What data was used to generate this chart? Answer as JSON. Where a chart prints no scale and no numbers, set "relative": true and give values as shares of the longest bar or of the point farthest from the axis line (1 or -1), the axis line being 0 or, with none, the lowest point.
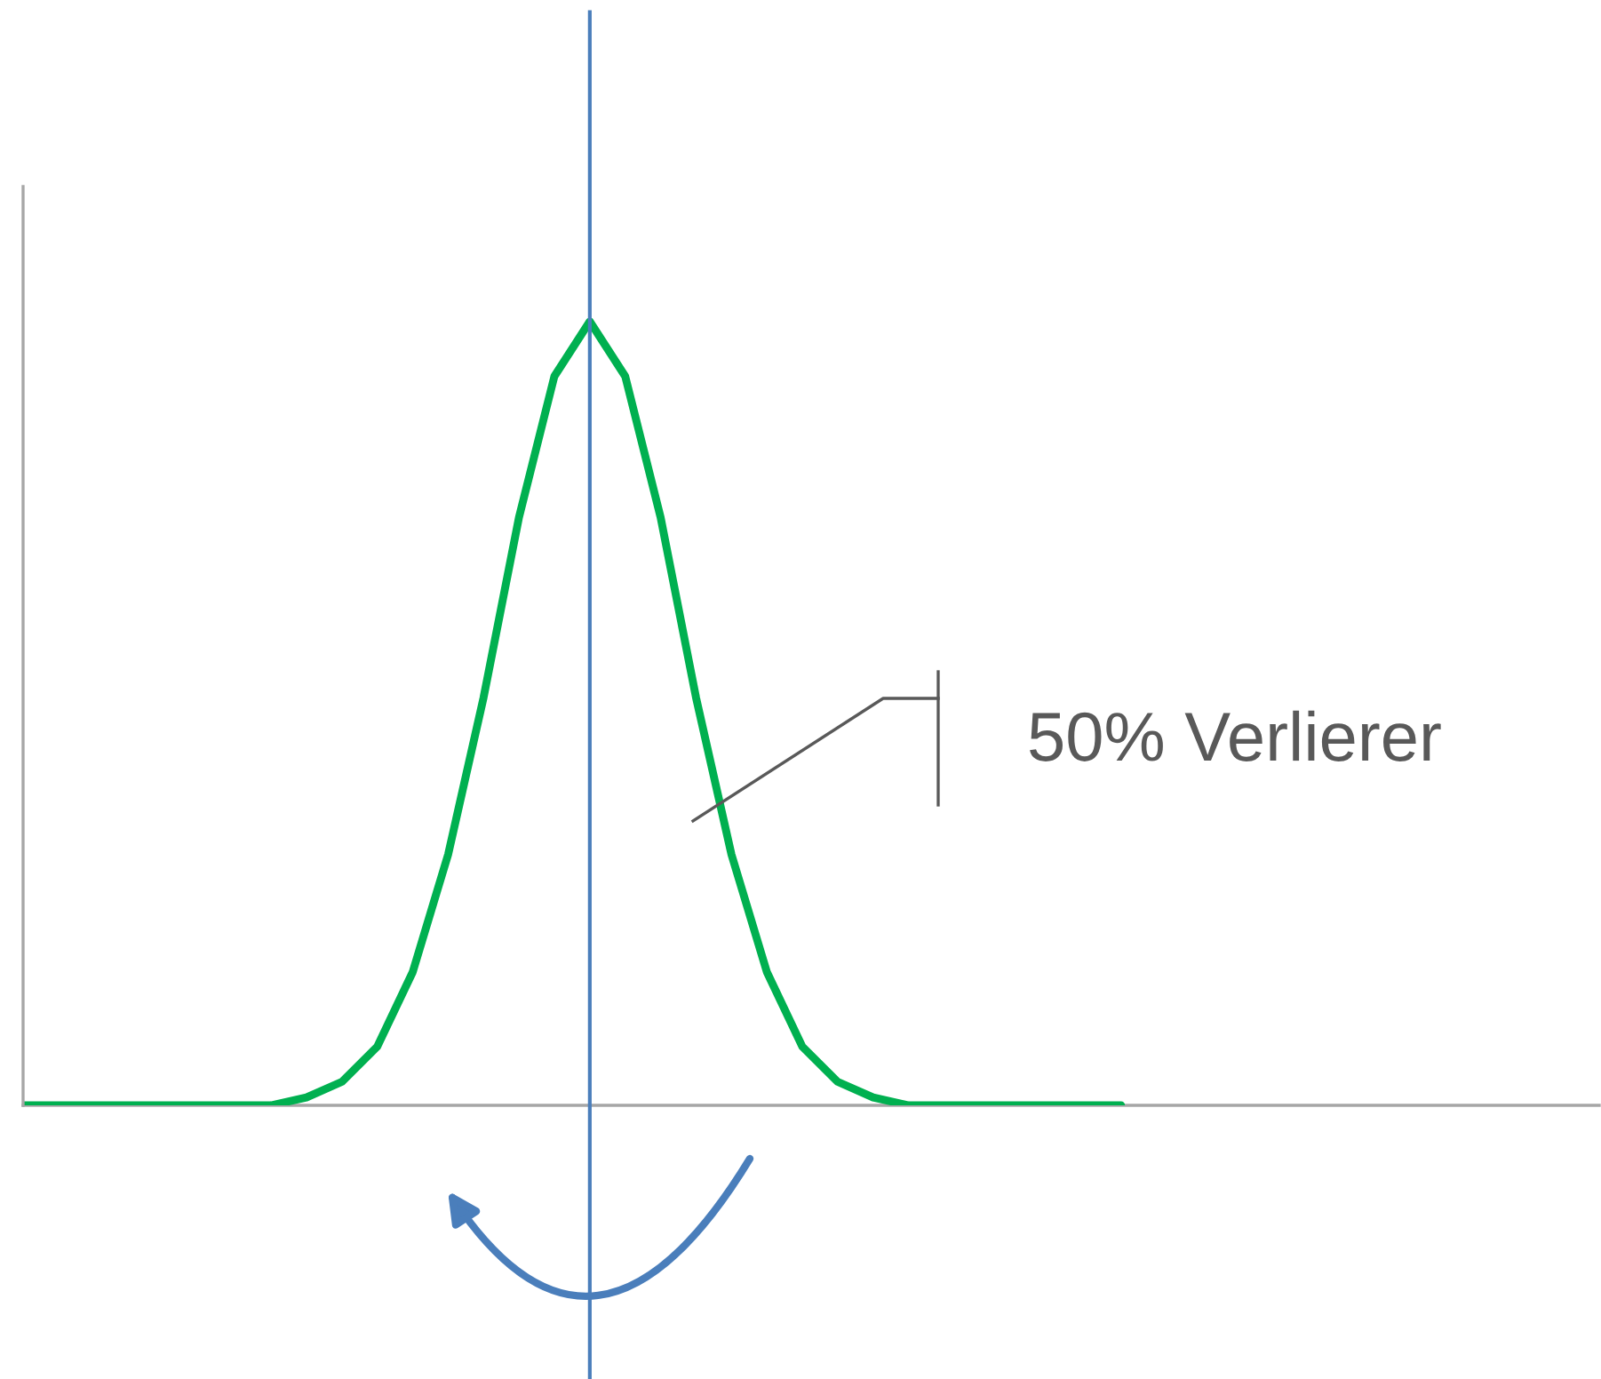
{
  "chart_data": {
    "type": "line",
    "relative": true,
    "categories": [
      null,
      null,
      null,
      null,
      null,
      null,
      null,
      null,
      null,
      null,
      null,
      null,
      null,
      null,
      null,
      null,
      null,
      null,
      null,
      null,
      null,
      null,
      null,
      null,
      null,
      null,
      null,
      null,
      null,
      null,
      null,
      null,
      null,
      null,
      null,
      null,
      null,
      null,
      null,
      null,
      null,
      null,
      null,
      null,
      null
    ],
    "series": [
      {
        "color": "#00b050",
        "values": [
          0,
          0,
          0,
          0,
          0,
          0,
          0,
          0,
          0.01,
          0.03,
          0.075,
          0.17,
          0.32,
          0.52,
          0.75,
          0.93,
          1,
          0.93,
          0.75,
          0.52,
          0.32,
          0.17,
          0.075,
          0.03,
          0.01,
          0,
          0,
          0,
          0,
          0,
          0,
          0,
          null,
          null,
          null,
          null,
          null,
          null,
          null,
          null,
          null,
          null,
          null,
          null,
          null
        ]
      }
    ],
    "annotations": [
      "50% Verlierer"
    ],
    "grid": false,
    "marker": "none",
    "line_style": "solid"
  }
}
